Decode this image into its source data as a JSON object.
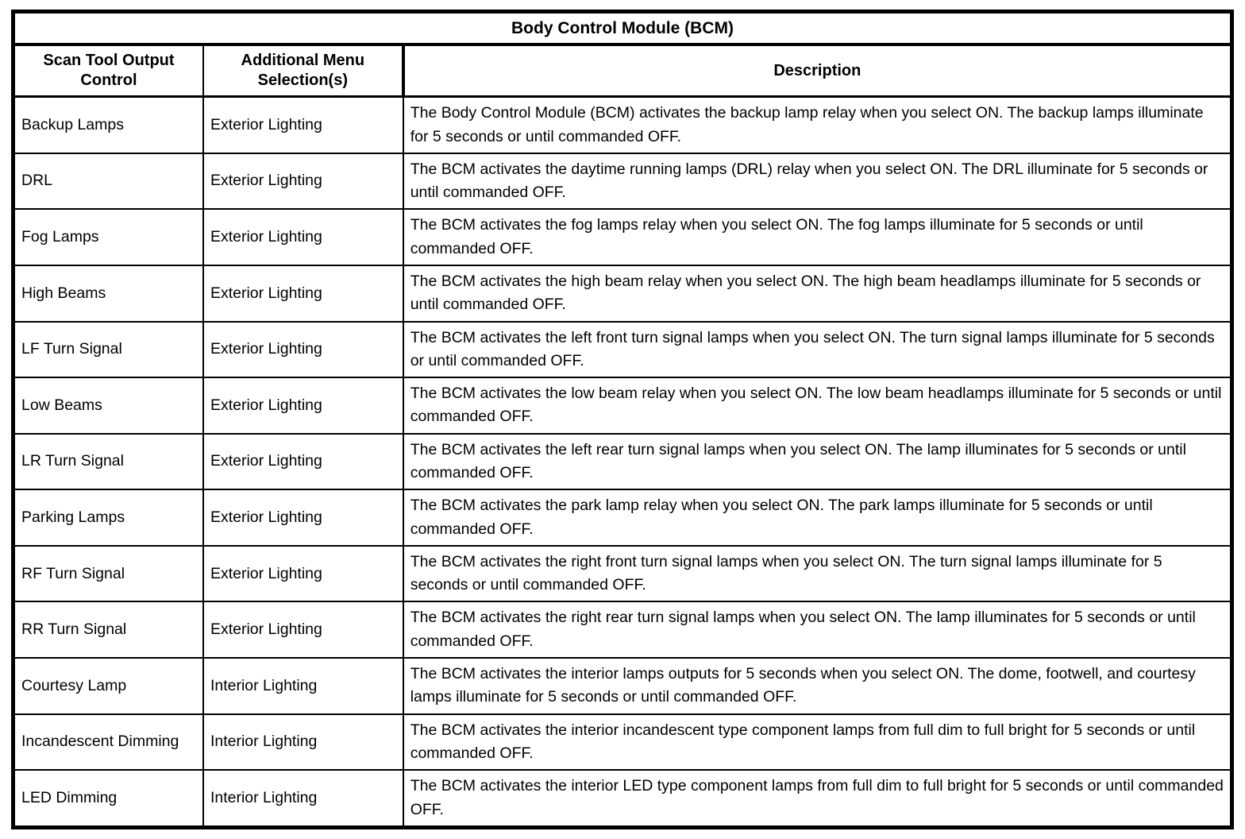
{
  "table": {
    "title": "Body Control Module (BCM)",
    "headers": {
      "control": "Scan Tool Output Control",
      "menu": "Additional Menu Selection(s)",
      "description": "Description"
    },
    "rows": [
      {
        "control": "Backup Lamps",
        "menu": "Exterior Lighting",
        "description": "The Body Control Module (BCM) activates the backup lamp relay when you select ON. The backup lamps illuminate for 5 seconds or until commanded OFF."
      },
      {
        "control": "DRL",
        "menu": "Exterior Lighting",
        "description": "The BCM activates the daytime running lamps (DRL) relay when you select ON. The DRL illuminate for 5 seconds or until commanded OFF."
      },
      {
        "control": "Fog Lamps",
        "menu": "Exterior Lighting",
        "description": "The BCM activates the fog lamps relay when you select ON. The fog lamps illuminate for 5 seconds or until commanded OFF."
      },
      {
        "control": "High Beams",
        "menu": "Exterior Lighting",
        "description": "The BCM activates the high beam relay when you select ON. The high beam headlamps illuminate for 5 seconds or until commanded OFF."
      },
      {
        "control": "LF Turn Signal",
        "menu": "Exterior Lighting",
        "description": "The BCM activates the left front turn signal lamps when you select ON. The turn signal lamps illuminate for 5 seconds or until commanded OFF."
      },
      {
        "control": "Low Beams",
        "menu": "Exterior Lighting",
        "description": "The BCM activates the low beam relay when you select ON. The low beam headlamps illuminate for 5 seconds or until commanded OFF."
      },
      {
        "control": "LR Turn Signal",
        "menu": "Exterior Lighting",
        "description": "The BCM activates the left rear turn signal lamps when you select ON. The lamp illuminates for 5 seconds or until commanded OFF."
      },
      {
        "control": "Parking Lamps",
        "menu": "Exterior Lighting",
        "description": "The BCM activates the park lamp relay when you select ON. The park lamps illuminate for 5 seconds or until commanded OFF."
      },
      {
        "control": "RF Turn Signal",
        "menu": "Exterior Lighting",
        "description": "The BCM activates the right front turn signal lamps when you select ON. The turn signal lamps illuminate for 5 seconds or until commanded OFF."
      },
      {
        "control": "RR Turn Signal",
        "menu": "Exterior Lighting",
        "description": "The BCM activates the right rear turn signal lamps when you select ON. The lamp illuminates for 5 seconds or until commanded OFF."
      },
      {
        "control": "Courtesy Lamp",
        "menu": "Interior Lighting",
        "description": "The BCM activates the interior lamps outputs for 5 seconds when you select ON. The dome, footwell, and courtesy lamps illuminate for 5 seconds or until commanded OFF."
      },
      {
        "control": "Incandescent Dimming",
        "menu": "Interior Lighting",
        "description": "The BCM activates the interior incandescent type component lamps from full dim to full bright for 5 seconds or until commanded OFF."
      },
      {
        "control": "LED Dimming",
        "menu": "Interior Lighting",
        "description": "The BCM activates the interior LED type component lamps from full dim to full bright for 5 seconds or until commanded OFF."
      }
    ]
  }
}
